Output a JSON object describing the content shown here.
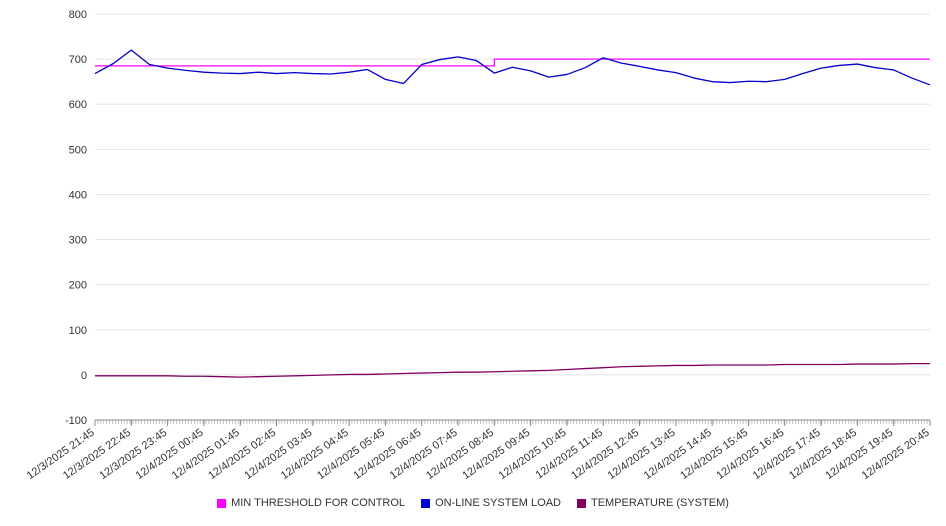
{
  "chart_data": {
    "type": "line",
    "title": "",
    "xlabel": "",
    "ylabel": "",
    "ylim": [
      -100,
      800
    ],
    "y_ticks": [
      800,
      700,
      600,
      500,
      400,
      300,
      200,
      100,
      0,
      -100
    ],
    "grid": true,
    "grid_color": "#e5e5e5",
    "axis_color": "#888888",
    "tick_color": "#999999",
    "label_color": "#333333",
    "legend_position": "bottom",
    "x_labels": [
      "12/3/2025 21:45",
      "12/3/2025 22:45",
      "12/3/2025 23:45",
      "12/4/2025 00:45",
      "12/4/2025 01:45",
      "12/4/2025 02:45",
      "12/4/2025 03:45",
      "12/4/2025 04:45",
      "12/4/2025 05:45",
      "12/4/2025 06:45",
      "12/4/2025 07:45",
      "12/4/2025 08:45",
      "12/4/2025 09:45",
      "12/4/2025 10:45",
      "12/4/2025 11:45",
      "12/4/2025 12:45",
      "12/4/2025 13:45",
      "12/4/2025 14:45",
      "12/4/2025 15:45",
      "12/4/2025 16:45",
      "12/4/2025 17:45",
      "12/4/2025 18:45",
      "12/4/2025 19:45",
      "12/4/2025 20:45"
    ],
    "points_per_label_interval": 2,
    "series": [
      {
        "name": "MIN THRESHOLD FOR CONTROL",
        "color": "#ff00ff",
        "step": true,
        "values": [
          685,
          685,
          685,
          685,
          685,
          685,
          685,
          685,
          685,
          685,
          685,
          685,
          685,
          685,
          685,
          685,
          685,
          685,
          685,
          685,
          685,
          685,
          700,
          700,
          700,
          700,
          700,
          700,
          700,
          700,
          700,
          700,
          700,
          700,
          700,
          700,
          700,
          700,
          700,
          700,
          700,
          700,
          700,
          700,
          700,
          700,
          700
        ]
      },
      {
        "name": "ON-LINE SYSTEM LOAD",
        "color": "#0000d0",
        "step": false,
        "values": [
          668,
          690,
          720,
          688,
          680,
          675,
          671,
          669,
          668,
          671,
          668,
          670,
          668,
          667,
          671,
          677,
          655,
          646,
          688,
          699,
          705,
          697,
          669,
          682,
          674,
          660,
          666,
          681,
          703,
          691,
          684,
          676,
          670,
          658,
          650,
          648,
          651,
          650,
          655,
          668,
          680,
          686,
          689,
          681,
          676,
          658,
          643
        ]
      },
      {
        "name": "TEMPERATURE (SYSTEM)",
        "color": "#800060",
        "step": false,
        "values": [
          -2,
          -2,
          -2,
          -2,
          -2,
          -3,
          -3,
          -4,
          -5,
          -4,
          -3,
          -2,
          -1,
          0,
          1,
          1,
          2,
          3,
          4,
          5,
          6,
          6,
          7,
          8,
          9,
          10,
          12,
          14,
          16,
          18,
          19,
          20,
          21,
          21,
          22,
          22,
          22,
          22,
          23,
          23,
          23,
          23,
          24,
          24,
          24,
          25,
          25
        ]
      }
    ]
  }
}
